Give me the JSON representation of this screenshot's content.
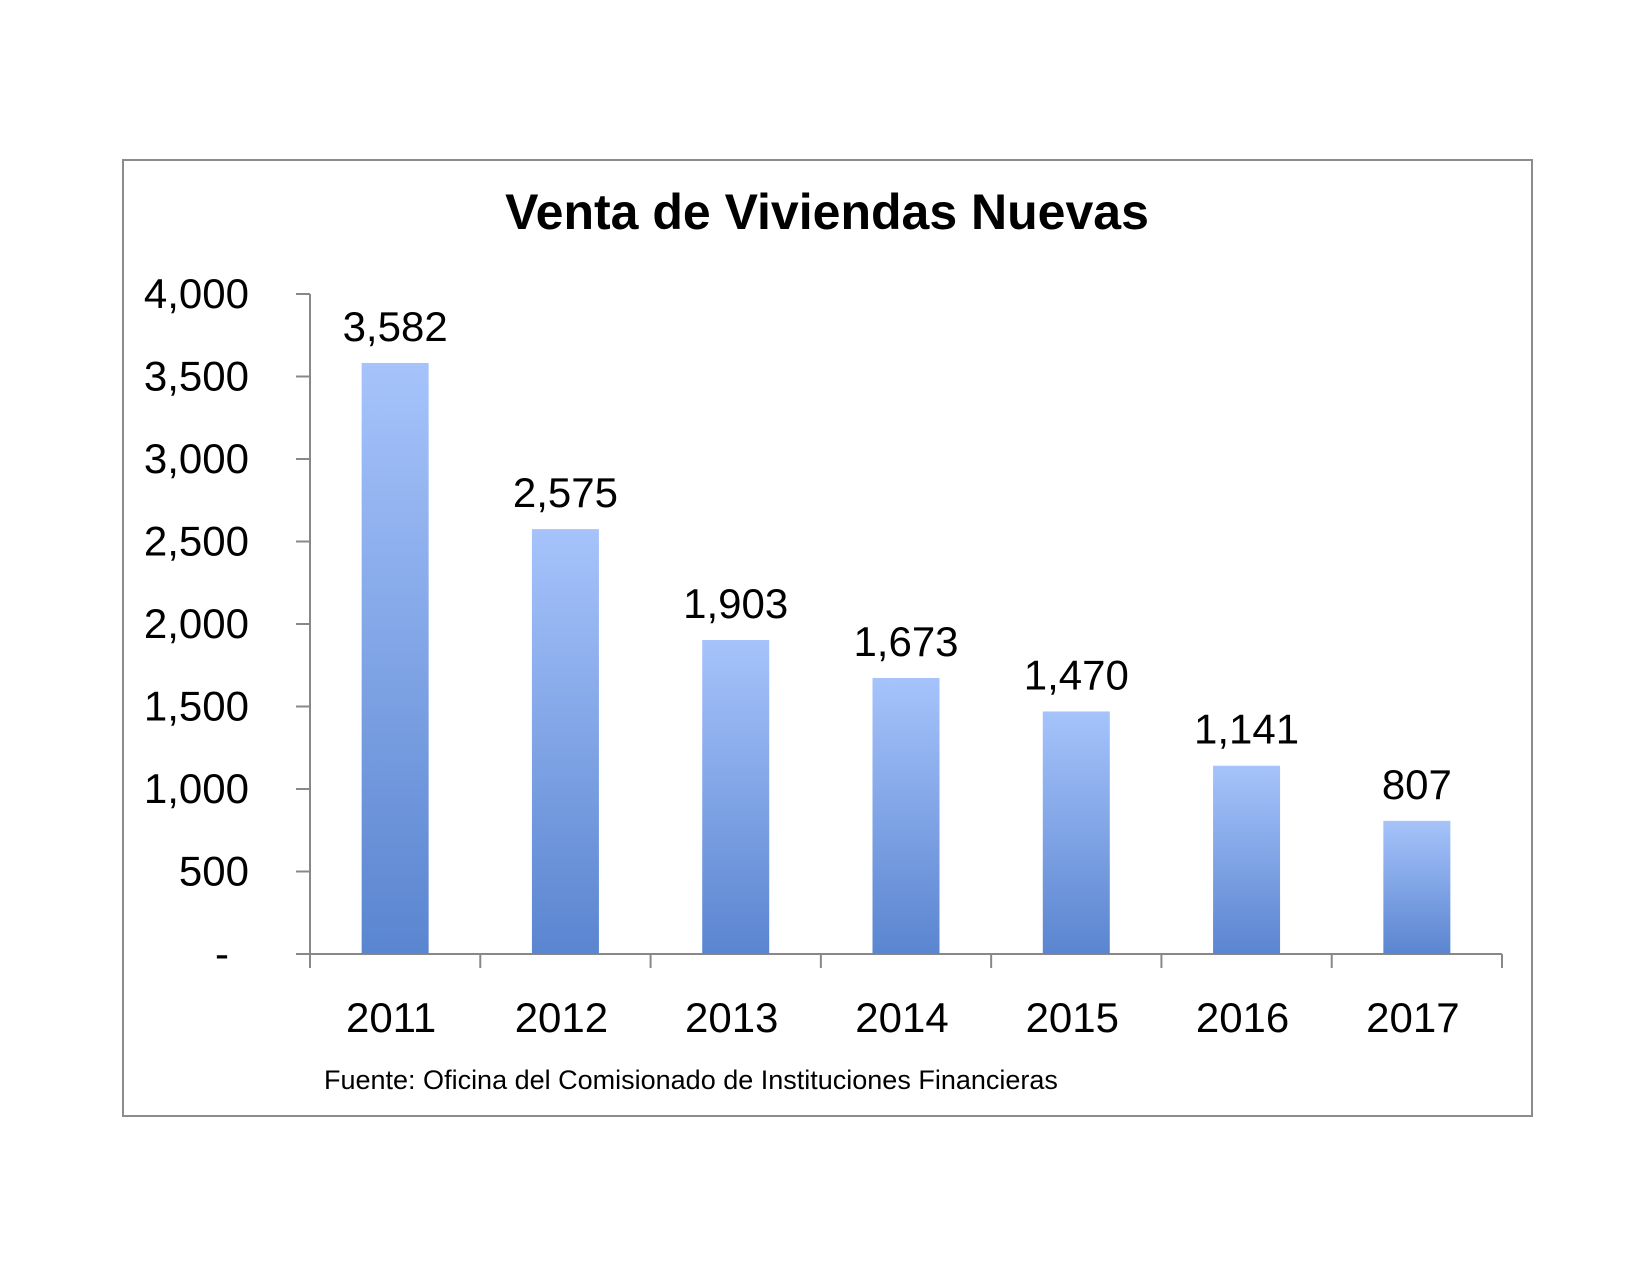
{
  "chart_data": {
    "type": "bar",
    "title": "Venta de Viviendas Nuevas",
    "categories": [
      "2011",
      "2012",
      "2013",
      "2014",
      "2015",
      "2016",
      "2017"
    ],
    "values": [
      3582,
      2575,
      1903,
      1673,
      1470,
      1141,
      807
    ],
    "data_labels": [
      "3,582",
      "2,575",
      "1,903",
      "1,673",
      "1,470",
      "1,141",
      "807"
    ],
    "ylim": [
      0,
      4000
    ],
    "yticks": [
      0,
      500,
      1000,
      1500,
      2000,
      2500,
      3000,
      3500,
      4000
    ],
    "ytick_labels": [
      "-",
      "500",
      "1,000",
      "1,500",
      "2,000",
      "2,500",
      "3,000",
      "3,500",
      "4,000"
    ],
    "grid": false,
    "legend": "none",
    "bar_color_top": "#a6c3fb",
    "bar_color_bottom": "#5a85d0",
    "source": "Fuente: Oficina del Comisionado de Instituciones Financieras"
  }
}
